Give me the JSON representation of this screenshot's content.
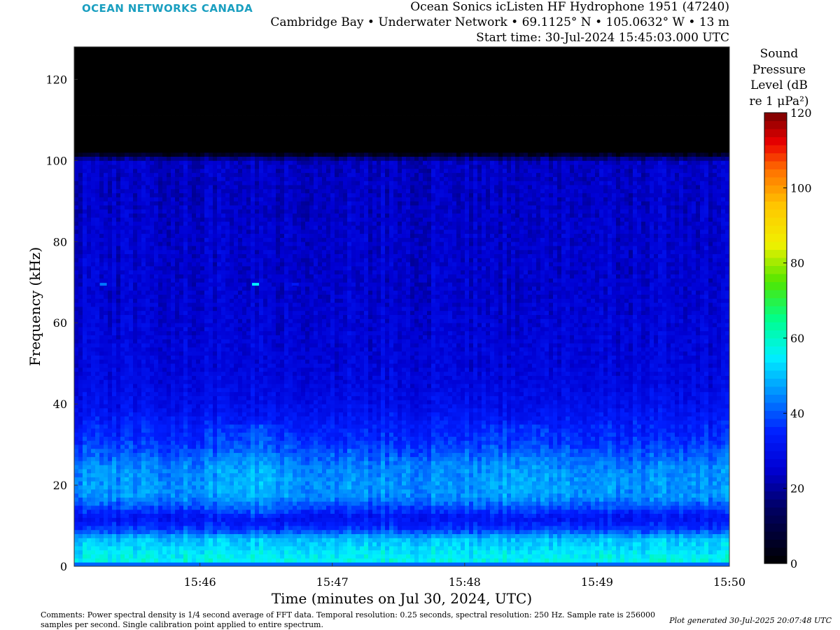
{
  "brand": "OCEAN NETWORKS CANADA",
  "header": {
    "line1": "Ocean Sonics icListen HF Hydrophone 1951 (47240)",
    "line2": "Cambridge Bay • Underwater Network • 69.1125° N • 105.0632° W • 13 m",
    "line3": "Start time: 30-Jul-2024 15:45:03.000 UTC"
  },
  "colorbar": {
    "title_lines": [
      "Sound",
      "Pressure",
      "Level (dB",
      "re 1 μPa²)"
    ],
    "ticks": [
      "0",
      "20",
      "40",
      "60",
      "80",
      "100",
      "120"
    ],
    "range": [
      0,
      120
    ]
  },
  "comments": "Comments: Power spectral density is 1/4 second average of FFT data. Temporal resolution: 0.25 seconds, spectral resolution: 250 Hz. Sample rate is 256000 samples per second. Single calibration point applied to entire spectrum.",
  "generated": "Plot generated 30-Jul-2025 20:07:48 UTC",
  "chart_data": {
    "type": "heatmap",
    "xlabel": "Time (minutes on Jul 30, 2024, UTC)",
    "ylabel": "Frequency (kHz)",
    "x_ticks": [
      "15:46",
      "15:47",
      "15:48",
      "15:49",
      "15:50"
    ],
    "x_tick_minutes": [
      46,
      47,
      48,
      49,
      50
    ],
    "xlim_minutes": [
      45.05,
      50.0
    ],
    "y_ticks": [
      0,
      20,
      40,
      60,
      80,
      100,
      120
    ],
    "ylim": [
      0,
      128
    ],
    "colorbar_range_dB": [
      0,
      120
    ],
    "spectral_profile": {
      "frequency_kHz": [
        0,
        0.8,
        1.5,
        4,
        7,
        9,
        12,
        14,
        17,
        20,
        24,
        28,
        31,
        35,
        40,
        45,
        50,
        60,
        70,
        80,
        90,
        100,
        102,
        128
      ],
      "level_dB": [
        20,
        54,
        57,
        54,
        50,
        38,
        31,
        37,
        45,
        46,
        45,
        40,
        36,
        34,
        30,
        28,
        27,
        26,
        25,
        25,
        24,
        24,
        0,
        0
      ]
    },
    "noise_free_above_kHz": 102,
    "tonal_marks": [
      {
        "time_min": 45.27,
        "frequency_kHz": 69.5,
        "level_dB": 43
      },
      {
        "time_min": 46.42,
        "frequency_kHz": 69.5,
        "level_dB": 55
      },
      {
        "time_min": 46.72,
        "frequency_kHz": 69.5,
        "level_dB": 33
      }
    ]
  }
}
